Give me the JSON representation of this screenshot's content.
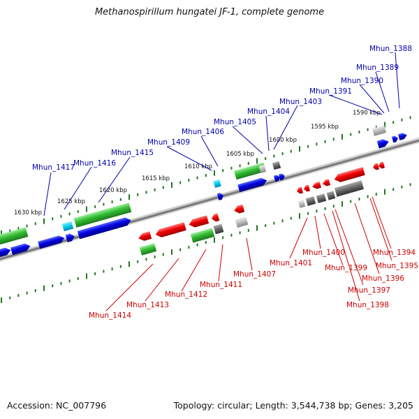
{
  "title": "Methanospirillum hungatei JF-1, complete genome",
  "footer": {
    "accession": "Accession: NC_007796",
    "summary": "Topology: circular; Length: 3,544,738 bp; Genes: 3,205"
  },
  "colors": {
    "plus_label": "#0000aa",
    "minus_label": "#cc0000",
    "green": "#33bb33",
    "blue": "#0000dd",
    "red": "#ee0000",
    "cyan": "#00ccee",
    "grey": "#777777",
    "lightgrey": "#bbbbbb",
    "tick": "#227722",
    "backbone": "#888888"
  },
  "kbp_labels": [
    "1630 kbp",
    "1625 kbp",
    "1620 kbp",
    "1615 kbp",
    "1610 kbp",
    "1605 kbp",
    "1600 kbp",
    "1595 kbp",
    "1590 kbp"
  ],
  "plus_genes": [
    "Mhun_1388",
    "Mhun_1389",
    "Mhun_1390",
    "Mhun_1391",
    "Mhun_1403",
    "Mhun_1404",
    "Mhun_1405",
    "Mhun_1406",
    "Mhun_1409",
    "Mhun_1415",
    "Mhun_1416",
    "Mhun_1417"
  ],
  "minus_genes": [
    "Mhun_1394",
    "Mhun_1395",
    "Mhun_1396",
    "Mhun_1397",
    "Mhun_1398",
    "Mhun_1399",
    "Mhun_1400",
    "Mhun_1401",
    "Mhun_1407",
    "Mhun_1411",
    "Mhun_1412",
    "Mhun_1413",
    "Mhun_1414"
  ]
}
